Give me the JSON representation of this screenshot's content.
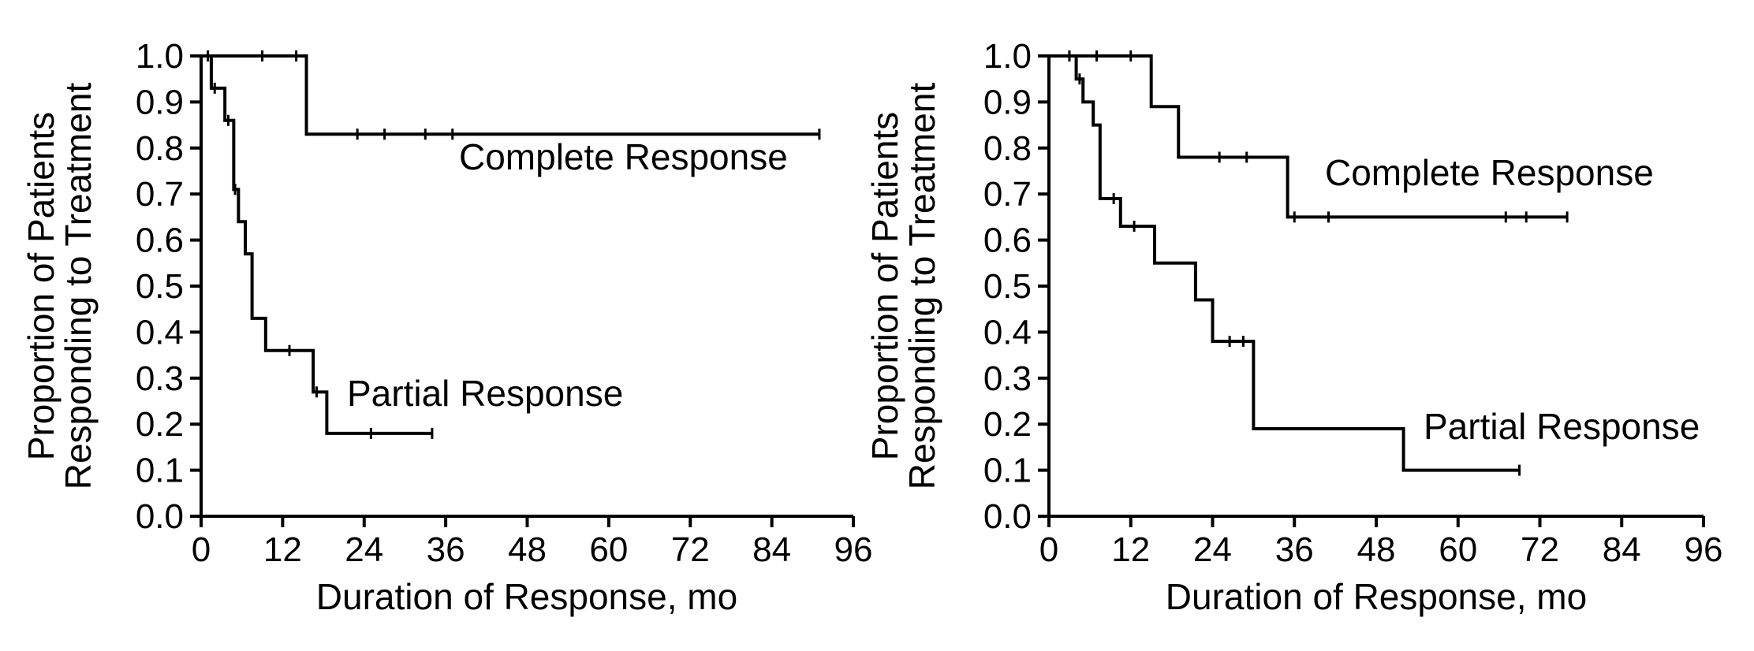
{
  "chart_data": [
    {
      "type": "line",
      "title": "",
      "xlabel": "Duration of Response, mo",
      "ylabel_lines": [
        "Proportion of Patients",
        "Responding to Treatment"
      ],
      "xlim": [
        0,
        96
      ],
      "ylim": [
        0,
        1.0
      ],
      "x_ticks": [
        0,
        12,
        24,
        36,
        48,
        60,
        72,
        84,
        96
      ],
      "y_ticks": [
        "0.0",
        "0.1",
        "0.2",
        "0.3",
        "0.4",
        "0.5",
        "0.6",
        "0.7",
        "0.8",
        "0.9",
        "1.0"
      ],
      "series": [
        {
          "name": "Complete Response",
          "step_x": [
            0,
            15.5,
            91
          ],
          "step_y": [
            1.0,
            0.83,
            0.83
          ],
          "censored": [
            [
              9,
              1.0
            ],
            [
              14,
              1.0
            ],
            [
              23,
              0.83
            ],
            [
              27,
              0.83
            ],
            [
              33,
              0.83
            ],
            [
              37,
              0.83
            ],
            [
              91,
              0.83
            ]
          ]
        },
        {
          "name": "Partial Response",
          "step_x": [
            0,
            1.5,
            3.5,
            4.8,
            5.5,
            6.5,
            7.5,
            9.5,
            16.5,
            18.5,
            34
          ],
          "step_y": [
            1.0,
            0.93,
            0.86,
            0.71,
            0.64,
            0.57,
            0.43,
            0.36,
            0.27,
            0.18,
            0.18
          ],
          "censored": [
            [
              1,
              1.0
            ],
            [
              2,
              0.93
            ],
            [
              4,
              0.86
            ],
            [
              5,
              0.71
            ],
            [
              13,
              0.36
            ],
            [
              17,
              0.27
            ],
            [
              25,
              0.18
            ],
            [
              34,
              0.18
            ]
          ]
        }
      ]
    },
    {
      "type": "line",
      "title": "",
      "xlabel": "Duration of Response, mo",
      "ylabel_lines": [
        "Proportion of Patients",
        "Responding to Treatment"
      ],
      "xlim": [
        0,
        96
      ],
      "ylim": [
        0,
        1.0
      ],
      "x_ticks": [
        0,
        12,
        24,
        36,
        48,
        60,
        72,
        84,
        96
      ],
      "y_ticks": [
        "0.0",
        "0.1",
        "0.2",
        "0.3",
        "0.4",
        "0.5",
        "0.6",
        "0.7",
        "0.8",
        "0.9",
        "1.0"
      ],
      "series": [
        {
          "name": "Complete Response",
          "step_x": [
            0,
            15,
            19,
            35,
            76
          ],
          "step_y": [
            1.0,
            0.89,
            0.78,
            0.65,
            0.65
          ],
          "censored": [
            [
              3,
              1.0
            ],
            [
              7,
              1.0
            ],
            [
              12,
              1.0
            ],
            [
              25,
              0.78
            ],
            [
              29,
              0.78
            ],
            [
              36,
              0.65
            ],
            [
              41,
              0.65
            ],
            [
              67,
              0.65
            ],
            [
              70,
              0.65
            ],
            [
              76,
              0.65
            ]
          ]
        },
        {
          "name": "Partial Response",
          "step_x": [
            0,
            4,
            5,
            6.5,
            7.5,
            10.5,
            15.5,
            21.5,
            24,
            30,
            52,
            69
          ],
          "step_y": [
            1.0,
            0.95,
            0.9,
            0.85,
            0.69,
            0.63,
            0.55,
            0.47,
            0.38,
            0.19,
            0.1,
            0.1
          ],
          "censored": [
            [
              3,
              1.0
            ],
            [
              4.5,
              0.95
            ],
            [
              9.5,
              0.69
            ],
            [
              12.5,
              0.63
            ],
            [
              26.5,
              0.38
            ],
            [
              28.5,
              0.38
            ],
            [
              69,
              0.1
            ]
          ]
        }
      ]
    }
  ]
}
